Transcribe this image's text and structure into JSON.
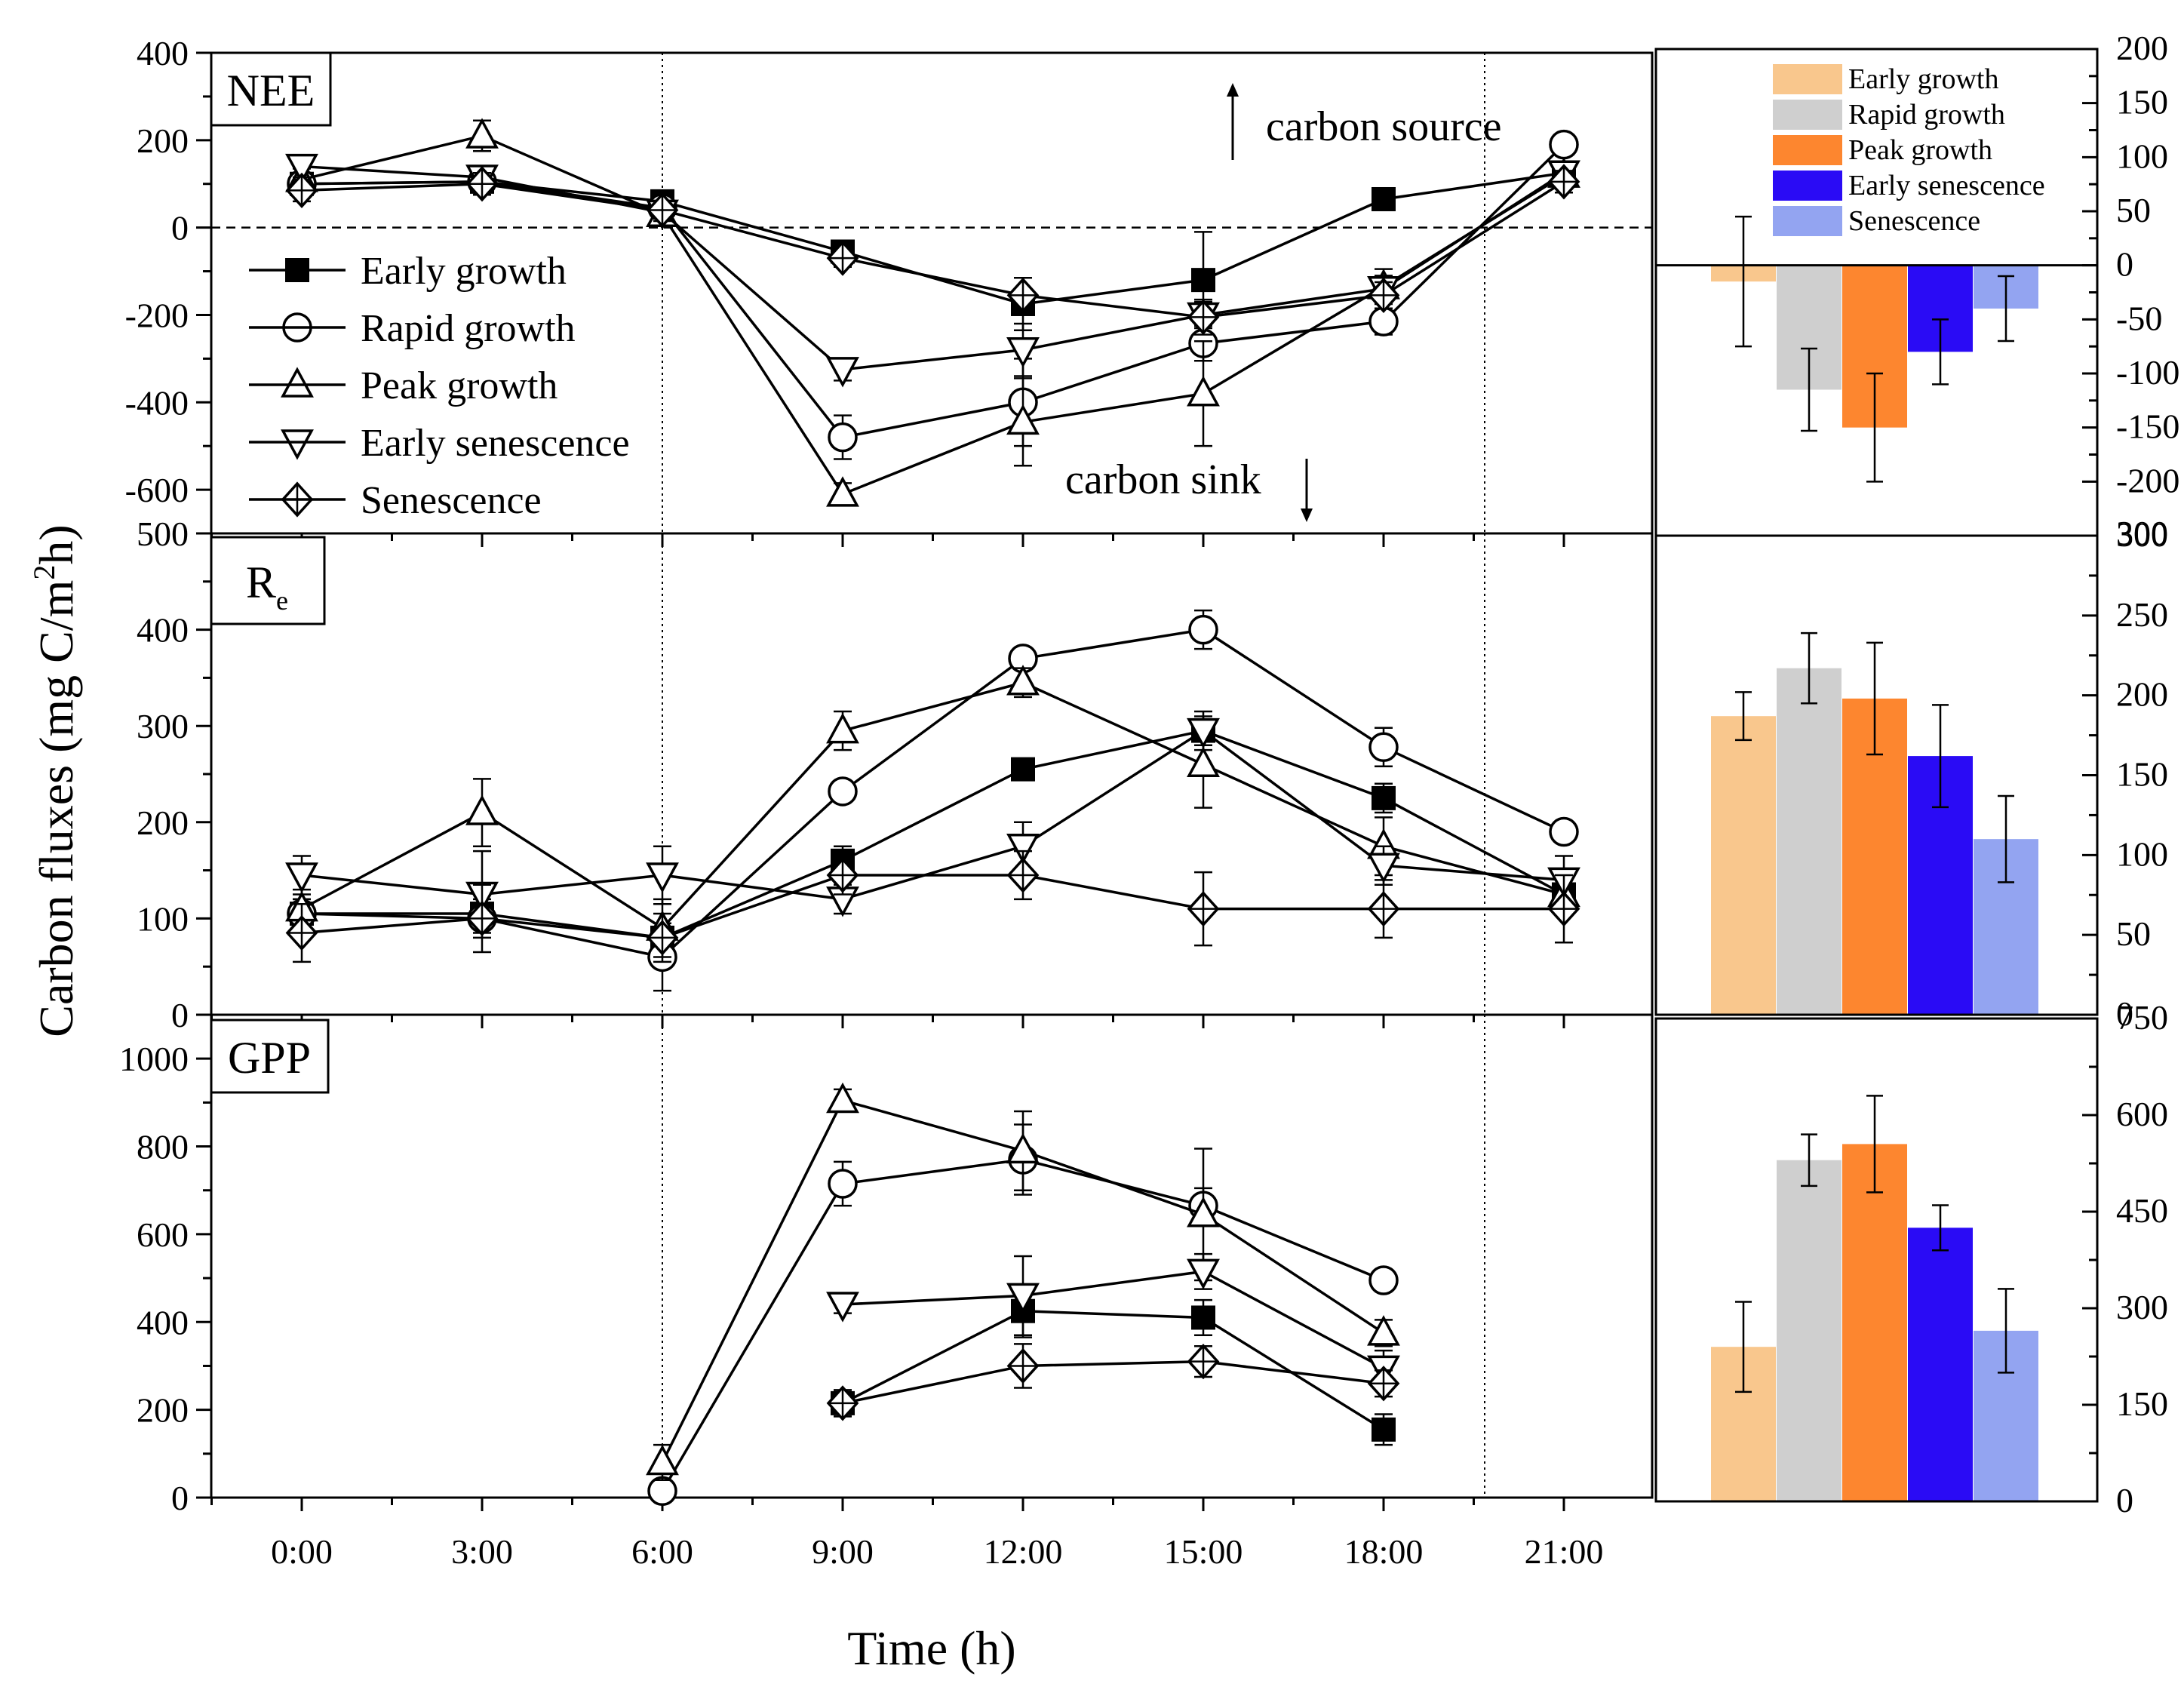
{
  "chart_data": [
    {
      "type": "line",
      "panel": "NEE",
      "title": "NEE",
      "xlabel": "Time (h)",
      "ylabel": "Carbon fluxes (mg C/m²h)",
      "ylabel_main": "Carbon fluxes (mg C/m",
      "ylabel_sup": "2",
      "ylabel_end": "h)",
      "x_ticks": [
        "0:00",
        "3:00",
        "6:00",
        "9:00",
        "12:00",
        "15:00",
        "18:00",
        "21:00"
      ],
      "ylim": [
        -700,
        400
      ],
      "y_ticks": [
        -600,
        -400,
        -200,
        0,
        200,
        400
      ],
      "annotations": {
        "source": "carbon source",
        "sink": "carbon sink"
      },
      "series": [
        {
          "name": "Early growth",
          "marker": "square",
          "values": [
            100,
            105,
            60,
            -55,
            -175,
            -120,
            65,
            125
          ],
          "errors": [
            25,
            25,
            20,
            20,
            60,
            110,
            15,
            25
          ]
        },
        {
          "name": "Rapid growth",
          "marker": "circle",
          "values": [
            100,
            105,
            45,
            -480,
            -400,
            -265,
            -215,
            190
          ],
          "errors": [
            25,
            25,
            20,
            50,
            100,
            40,
            30,
            20
          ]
        },
        {
          "name": "Peak growth",
          "marker": "triangle-up",
          "values": [
            110,
            210,
            30,
            -610,
            -445,
            -380,
            -135,
            120
          ],
          "errors": [
            25,
            35,
            20,
            25,
            100,
            120,
            40,
            30
          ]
        },
        {
          "name": "Early senescence",
          "marker": "triangle-down",
          "values": [
            140,
            115,
            35,
            -325,
            -280,
            -200,
            -140,
            125
          ],
          "errors": [
            25,
            25,
            20,
            25,
            60,
            30,
            30,
            20
          ]
        },
        {
          "name": "Senescence",
          "marker": "diamond",
          "values": [
            85,
            100,
            40,
            -70,
            -155,
            -205,
            -155,
            105
          ],
          "errors": [
            25,
            25,
            20,
            20,
            40,
            40,
            30,
            25
          ]
        }
      ]
    },
    {
      "type": "line",
      "panel": "Re",
      "title": "R",
      "title_sub": "e",
      "ylim": [
        0,
        500
      ],
      "y_ticks": [
        0,
        100,
        200,
        300,
        400,
        500
      ],
      "series": [
        {
          "name": "Early growth",
          "marker": "square",
          "values": [
            105,
            105,
            80,
            160,
            255,
            295,
            225,
            125
          ],
          "errors": [
            15,
            15,
            15,
            15,
            10,
            15,
            15,
            15
          ]
        },
        {
          "name": "Rapid growth",
          "marker": "circle",
          "values": [
            105,
            100,
            60,
            232,
            370,
            400,
            278,
            190
          ],
          "errors": [
            15,
            15,
            35,
            10,
            10,
            20,
            20,
            10
          ]
        },
        {
          "name": "Peak growth",
          "marker": "triangle-up",
          "values": [
            110,
            210,
            90,
            295,
            345,
            260,
            175,
            125
          ],
          "errors": [
            20,
            35,
            30,
            20,
            15,
            45,
            30,
            15
          ]
        },
        {
          "name": "Early senescence",
          "marker": "triangle-down",
          "values": [
            145,
            125,
            145,
            120,
            175,
            295,
            155,
            140
          ],
          "errors": [
            20,
            45,
            30,
            15,
            25,
            20,
            20,
            25
          ]
        },
        {
          "name": "Senescence",
          "marker": "diamond",
          "values": [
            85,
            100,
            80,
            145,
            145,
            110,
            110,
            110
          ],
          "errors": [
            30,
            35,
            25,
            20,
            25,
            38,
            30,
            35
          ]
        }
      ]
    },
    {
      "type": "line",
      "panel": "GPP",
      "title": "GPP",
      "ylim": [
        0,
        1100
      ],
      "y_ticks": [
        0,
        200,
        400,
        600,
        800,
        1000
      ],
      "series": [
        {
          "name": "Early growth",
          "marker": "square",
          "x_index": [
            3,
            4,
            5,
            6
          ],
          "values": [
            215,
            425,
            410,
            155
          ],
          "errors": [
            30,
            60,
            40,
            35
          ]
        },
        {
          "name": "Rapid growth",
          "marker": "circle",
          "x_index": [
            2,
            3,
            4,
            5,
            6
          ],
          "values": [
            15,
            715,
            770,
            665,
            495
          ],
          "errors": [
            15,
            50,
            80,
            40,
            25
          ]
        },
        {
          "name": "Peak growth",
          "marker": "triangle-up",
          "x_index": [
            2,
            3,
            4,
            5,
            6
          ],
          "values": [
            80,
            905,
            790,
            645,
            375
          ],
          "errors": [
            40,
            25,
            90,
            150,
            30
          ]
        },
        {
          "name": "Early senescence",
          "marker": "triangle-down",
          "x_index": [
            3,
            4,
            5,
            6
          ],
          "values": [
            440,
            460,
            515,
            295
          ],
          "errors": [
            20,
            90,
            40,
            40
          ]
        },
        {
          "name": "Senescence",
          "marker": "diamond",
          "x_index": [
            3,
            4,
            5,
            6
          ],
          "values": [
            215,
            300,
            310,
            260
          ],
          "errors": [
            30,
            50,
            35,
            30
          ]
        }
      ]
    },
    {
      "type": "bar",
      "panel": "NEE mean",
      "categories": [
        "Early growth",
        "Rapid growth",
        "Peak growth",
        "Early senescence",
        "Senescence"
      ],
      "colors": [
        "#f9c78d",
        "#cfcfcf",
        "#fd862f",
        "#2a0bf5",
        "#93a4f1"
      ],
      "values": [
        -15,
        -115,
        -150,
        -80,
        -40
      ],
      "errors": [
        60,
        38,
        50,
        30,
        30
      ],
      "ylim": [
        -250,
        200
      ],
      "y_ticks": [
        -200,
        -150,
        -100,
        -50,
        0,
        50,
        100,
        150,
        200
      ]
    },
    {
      "type": "bar",
      "panel": "Re mean",
      "categories": [
        "Early growth",
        "Rapid growth",
        "Peak growth",
        "Early senescence",
        "Senescence"
      ],
      "colors": [
        "#f9c78d",
        "#cfcfcf",
        "#fd862f",
        "#2a0bf5",
        "#93a4f1"
      ],
      "values": [
        187,
        217,
        198,
        162,
        110
      ],
      "errors": [
        15,
        22,
        35,
        32,
        27
      ],
      "ylim": [
        0,
        300
      ],
      "y_ticks": [
        0,
        50,
        100,
        150,
        200,
        250,
        300
      ]
    },
    {
      "type": "bar",
      "panel": "GPP mean",
      "categories": [
        "Early growth",
        "Rapid growth",
        "Peak growth",
        "Early senescence",
        "Senescence"
      ],
      "colors": [
        "#f9c78d",
        "#cfcfcf",
        "#fd862f",
        "#2a0bf5",
        "#93a4f1"
      ],
      "values": [
        240,
        530,
        555,
        425,
        265
      ],
      "errors": [
        70,
        40,
        75,
        35,
        65
      ],
      "ylim": [
        0,
        750
      ],
      "y_ticks": [
        0,
        150,
        300,
        450,
        600,
        750
      ]
    }
  ]
}
